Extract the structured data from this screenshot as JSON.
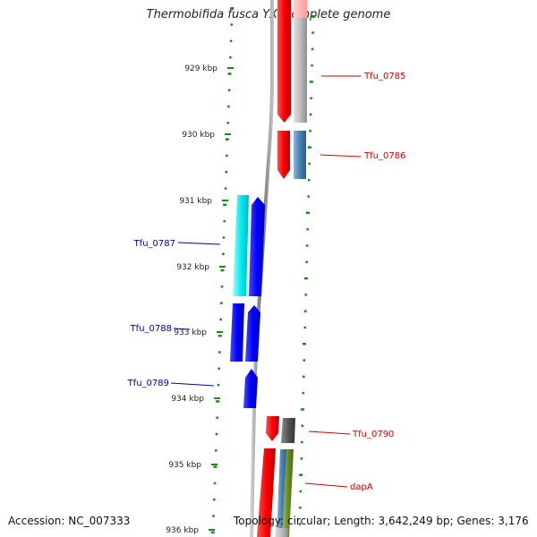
{
  "title": "Thermobifida fusca YX, complete genome",
  "accession": "Accession: NC_007333",
  "summary": "Topology: circular; Length: 3,642,249 bp; Genes: 3,176",
  "scale_labels": [
    "929 kbp",
    "930 kbp",
    "931 kbp",
    "932 kbp",
    "933 kbp",
    "934 kbp",
    "935 kbp",
    "936 kbp"
  ],
  "genes": [
    {
      "label": "Tfu_0785",
      "strand": "forward",
      "color": "#cc0000"
    },
    {
      "label": "Tfu_0786",
      "strand": "forward",
      "color": "#cc0000"
    },
    {
      "label": "Tfu_0787",
      "strand": "reverse",
      "color": "#000099"
    },
    {
      "label": "Tfu_0788",
      "strand": "reverse",
      "color": "#000099"
    },
    {
      "label": "Tfu_0789",
      "strand": "reverse",
      "color": "#000099"
    },
    {
      "label": "Tfu_0790",
      "strand": "forward",
      "color": "#cc0000"
    },
    {
      "label": "dapA",
      "strand": "forward",
      "color": "#cc0000"
    }
  ],
  "colors": {
    "tick": "#1a8a1a",
    "backbone": "#888888",
    "cds_forward": "#ff0000",
    "cds_reverse": "#0000ff",
    "cog_cyan": "#00e5e5",
    "cog_grey": "#b8b8b8",
    "cog_steelblue": "#4682b4",
    "cog_darkgrey": "#555555",
    "cog_olive": "#6b8e23"
  }
}
